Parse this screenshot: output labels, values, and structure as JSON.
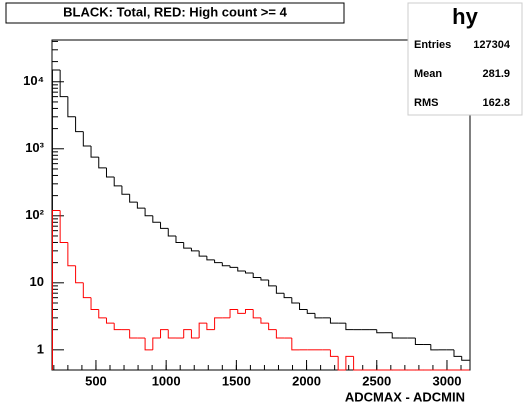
{
  "chart_data": {
    "type": "histogram",
    "title": "BLACK: Total, RED: High count >= 4",
    "xlabel": "ADCMAX - ADCMIN",
    "log_y": true,
    "bins": [
      190,
      245,
      300,
      355,
      410,
      465,
      520,
      575,
      630,
      685,
      740,
      795,
      850,
      905,
      960,
      1015,
      1070,
      1125,
      1180,
      1235,
      1290,
      1345,
      1400,
      1455,
      1510,
      1565,
      1620,
      1675,
      1730,
      1785,
      1840,
      1895,
      1950,
      2005,
      2060,
      2115,
      2170,
      2225,
      2280,
      2335,
      2390,
      2445,
      2500,
      2555,
      2610,
      2665,
      2720,
      2775,
      2830,
      2885,
      2940,
      2995,
      3050,
      3105,
      3160
    ],
    "series": [
      {
        "name": "Total",
        "color": "#000000",
        "values": [
          15000,
          6000,
          3000,
          1800,
          1100,
          750,
          520,
          380,
          280,
          210,
          160,
          130,
          100,
          80,
          65,
          50,
          40,
          33,
          30,
          25,
          22,
          20,
          18,
          17,
          15,
          14,
          12,
          11,
          9,
          7,
          6,
          5,
          4,
          3.5,
          3,
          3,
          2.5,
          2.5,
          2,
          2,
          2,
          2,
          1.8,
          1.8,
          1.5,
          1.5,
          1.5,
          1.2,
          1.2,
          1,
          1,
          1,
          0.8,
          0.7
        ]
      },
      {
        "name": "High count >= 4",
        "color": "#ff0000",
        "values": [
          120,
          40,
          18,
          10,
          6,
          4,
          3,
          2.5,
          2,
          2,
          1.5,
          1.5,
          1,
          1.5,
          2,
          1.5,
          1.5,
          2,
          1.5,
          2.5,
          2,
          3,
          3,
          4,
          3.5,
          4,
          3,
          2.5,
          2,
          1.5,
          1.5,
          1,
          1,
          1,
          1,
          1,
          0.8,
          0,
          0.8,
          0,
          0,
          0,
          0,
          0,
          0,
          0,
          0,
          0,
          0,
          0,
          0,
          0,
          0,
          0
        ]
      }
    ],
    "xlim": [
      187,
      3164
    ],
    "ylim": [
      0.5,
      42000
    ],
    "xticks": [
      500,
      1000,
      1500,
      2000,
      2500,
      3000
    ],
    "yticks": [
      1,
      10,
      {
        "value": 100,
        "label": "10²"
      },
      {
        "value": 1000,
        "label": "10³"
      },
      {
        "value": 10000,
        "label": "10⁴"
      }
    ],
    "stats": {
      "name": "hy",
      "rows": [
        [
          "Entries",
          "127304"
        ],
        [
          "Mean",
          "281.9"
        ],
        [
          "RMS",
          "162.8"
        ]
      ]
    }
  }
}
